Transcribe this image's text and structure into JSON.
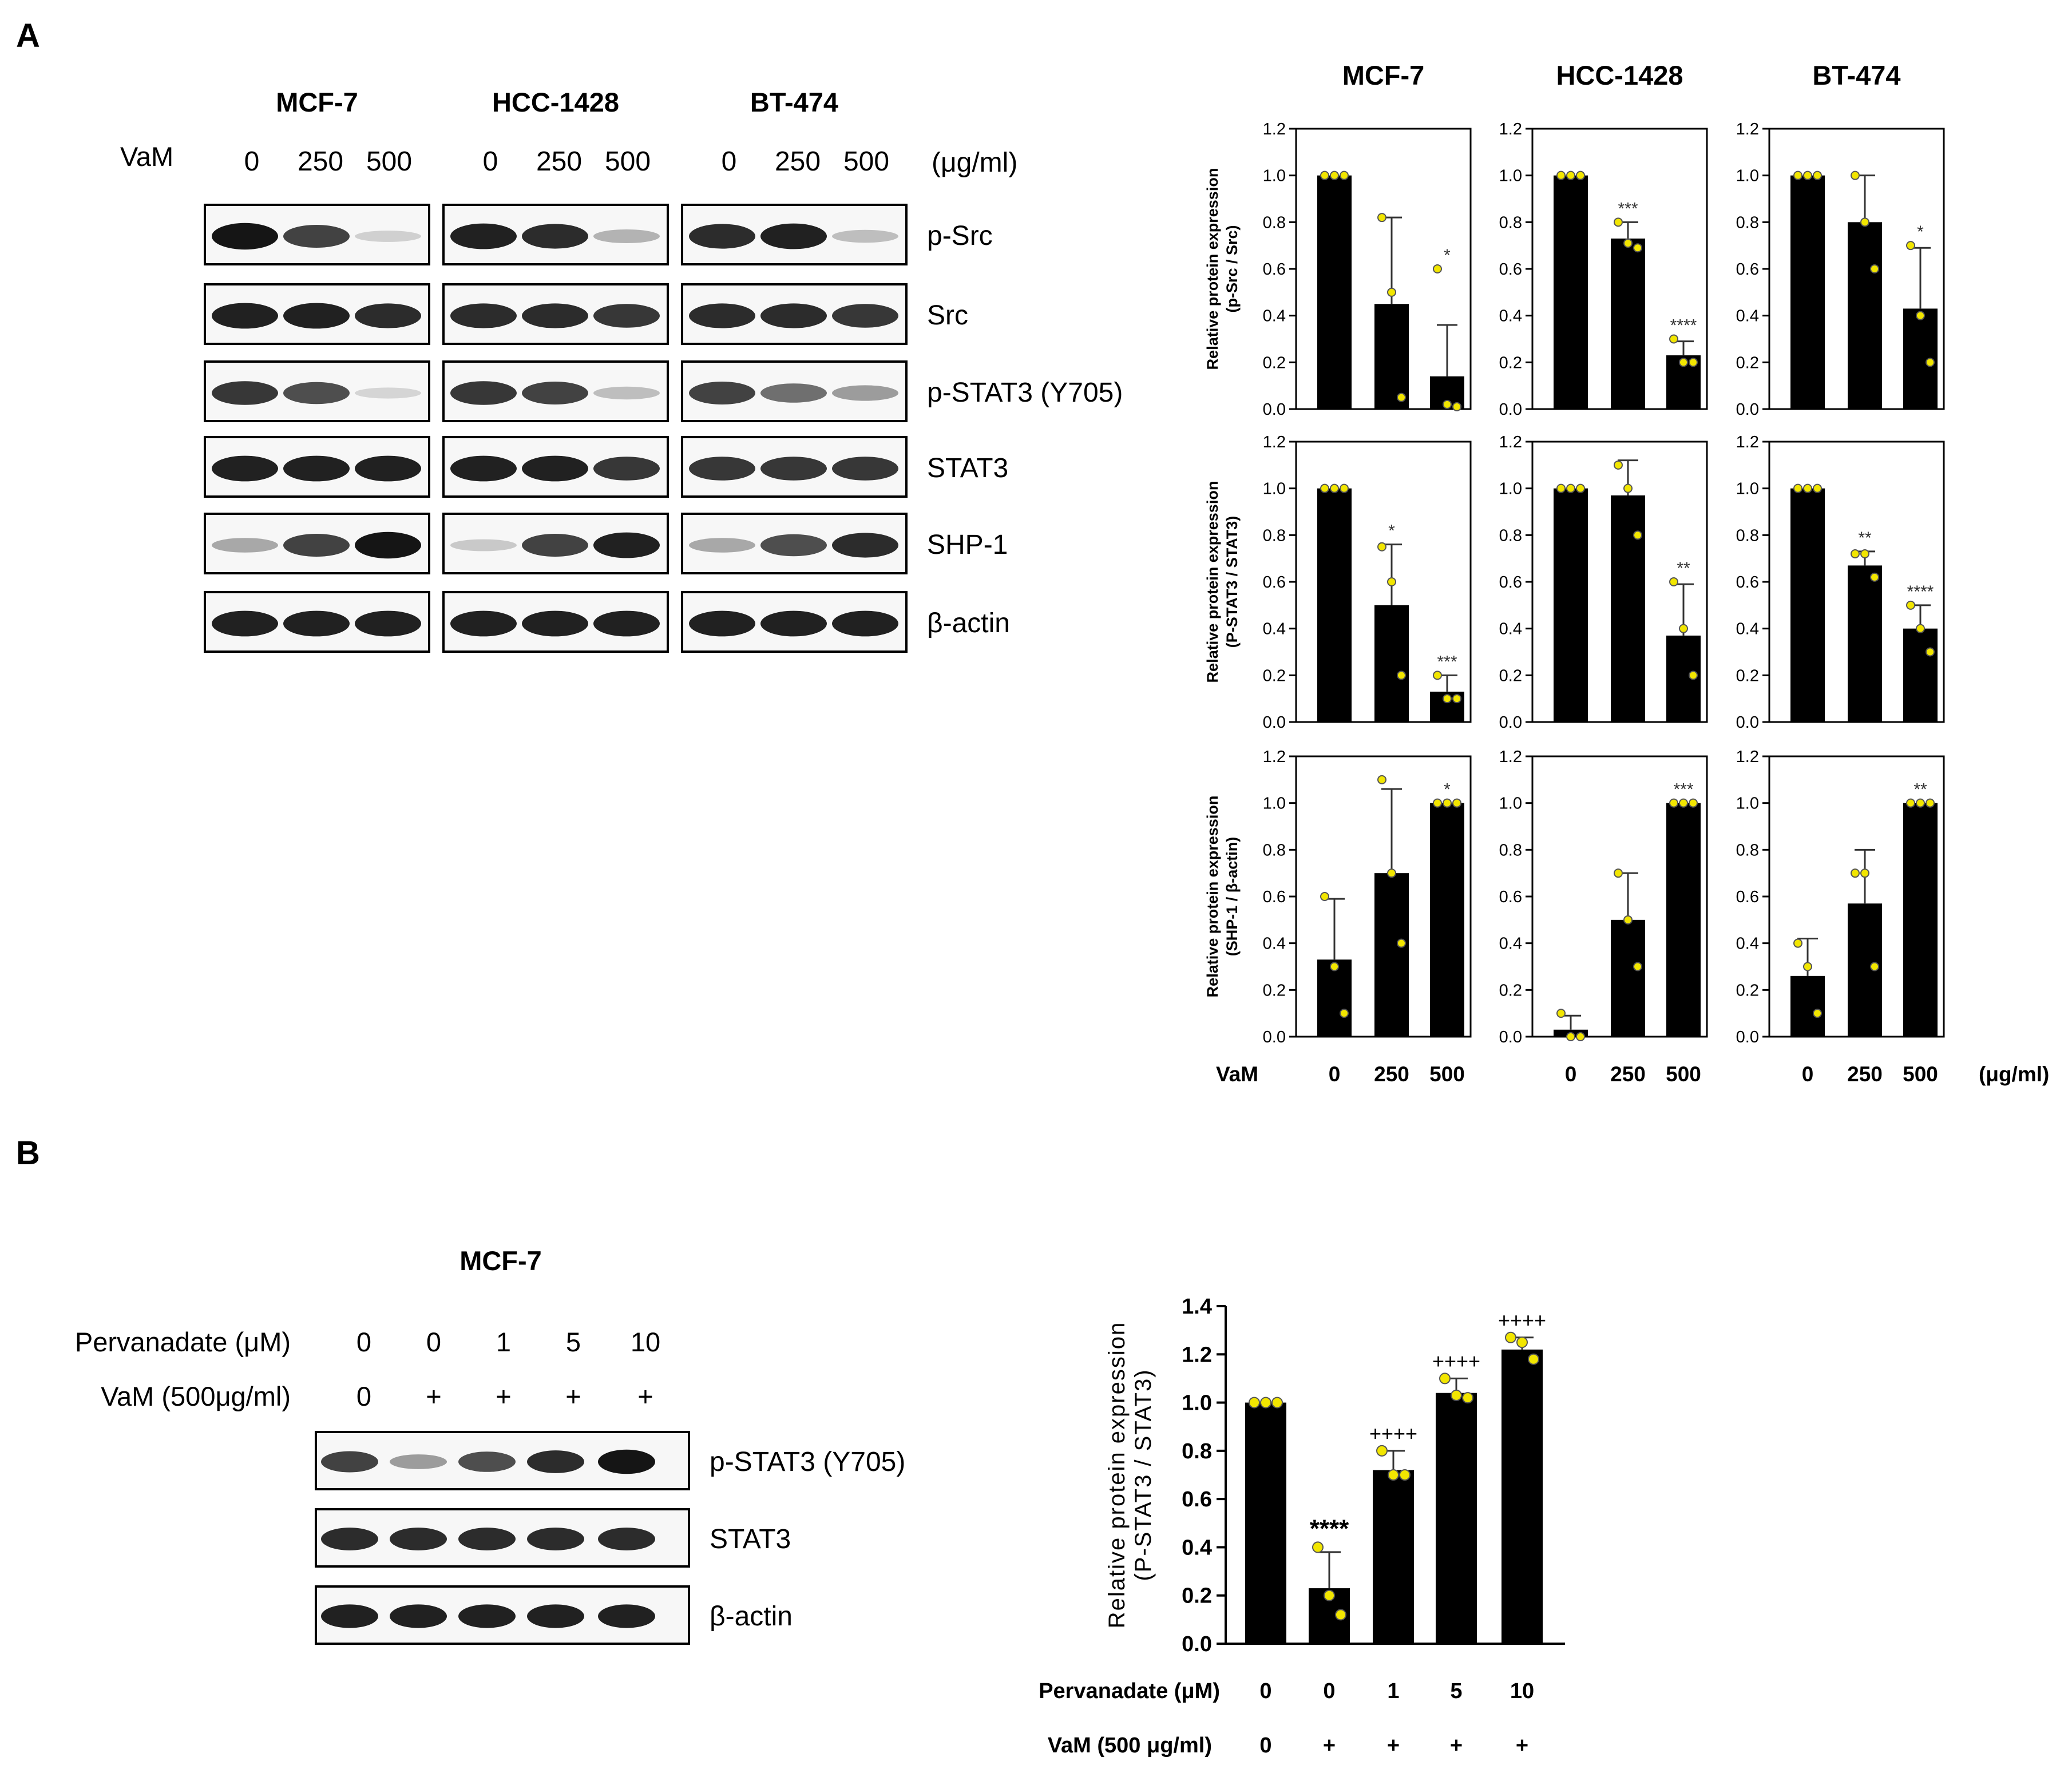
{
  "panels": {
    "a": "A",
    "b": "B"
  },
  "blots_a": {
    "treatment_label": "VaM",
    "unit": "(μg/ml)",
    "doses": [
      "0",
      "250",
      "500"
    ],
    "cell_lines": [
      "MCF-7",
      "HCC-1428",
      "BT-474"
    ],
    "proteins": [
      "p-Src",
      "Src",
      "p-STAT3 (Y705)",
      "STAT3",
      "SHP-1",
      "β-actin"
    ],
    "band_intensity": [
      [
        [
          0.95,
          0.75,
          0.12
        ],
        [
          0.9,
          0.85,
          0.25
        ],
        [
          0.85,
          0.9,
          0.2
        ]
      ],
      [
        [
          0.9,
          0.9,
          0.85
        ],
        [
          0.85,
          0.85,
          0.8
        ],
        [
          0.85,
          0.85,
          0.8
        ]
      ],
      [
        [
          0.8,
          0.7,
          0.1
        ],
        [
          0.8,
          0.75,
          0.2
        ],
        [
          0.75,
          0.55,
          0.35
        ]
      ],
      [
        [
          0.9,
          0.9,
          0.9
        ],
        [
          0.9,
          0.9,
          0.8
        ],
        [
          0.8,
          0.8,
          0.8
        ]
      ],
      [
        [
          0.3,
          0.75,
          0.95
        ],
        [
          0.15,
          0.75,
          0.9
        ],
        [
          0.3,
          0.7,
          0.85
        ]
      ],
      [
        [
          0.9,
          0.9,
          0.9
        ],
        [
          0.9,
          0.9,
          0.9
        ],
        [
          0.9,
          0.9,
          0.9
        ]
      ]
    ]
  },
  "blots_b": {
    "cell_line": "MCF-7",
    "row1_label": "Pervanadate (μM)",
    "row1_values": [
      "0",
      "0",
      "1",
      "5",
      "10"
    ],
    "row2_label": "VaM (500μg/ml)",
    "row2_values": [
      "0",
      "+",
      "+",
      "+",
      "+"
    ],
    "proteins": [
      "p-STAT3 (Y705)",
      "STAT3",
      "β-actin"
    ],
    "band_intensity": [
      [
        0.75,
        0.35,
        0.7,
        0.85,
        0.95
      ],
      [
        0.85,
        0.85,
        0.85,
        0.85,
        0.85
      ],
      [
        0.9,
        0.9,
        0.9,
        0.9,
        0.9
      ]
    ]
  },
  "grid_a": {
    "col_titles": [
      "MCF-7",
      "HCC-1428",
      "BT-474"
    ],
    "ylabel_line1": "Relative protein expression",
    "row_ylabels": [
      "(p-Src / Src)",
      "(P-STAT3 / STAT3)",
      "(SHP-1 / β-actin)"
    ],
    "yticks": [
      "0.0",
      "0.2",
      "0.4",
      "0.6",
      "0.8",
      "1.0",
      "1.2"
    ],
    "x_prefix": "VaM",
    "x_unit": "(μg/ml)"
  },
  "chart_b": {
    "ylabel_line1": "Relative protein expression",
    "ylabel_line2": "(P-STAT3 / STAT3)",
    "yticks": [
      "0.0",
      "0.2",
      "0.4",
      "0.6",
      "0.8",
      "1.0",
      "1.2",
      "1.4"
    ],
    "row1_label": "Pervanadate (μM)",
    "row2_label": "VaM (500 μg/ml)"
  },
  "chart_data": [
    {
      "type": "bar",
      "categories": [
        "0",
        "250",
        "500"
      ],
      "values": [
        1.0,
        0.45,
        0.14
      ],
      "errors": [
        0,
        0.37,
        0.22
      ],
      "points": [
        [
          1,
          1,
          1
        ],
        [
          0.82,
          0.5,
          0.05
        ],
        [
          0.6,
          0.02,
          0.01
        ]
      ],
      "sig": [
        "",
        "",
        "*"
      ],
      "ylim": [
        0,
        1.2
      ],
      "title": "MCF-7",
      "ylabel": "Relative protein expression (p-Src / Src)",
      "xlabel": "VaM",
      "color": "#000000",
      "point_color": "#f2e600"
    },
    {
      "type": "bar",
      "categories": [
        "0",
        "250",
        "500"
      ],
      "values": [
        1.0,
        0.73,
        0.23
      ],
      "errors": [
        0,
        0.07,
        0.06
      ],
      "points": [
        [
          1,
          1,
          1
        ],
        [
          0.8,
          0.71,
          0.69
        ],
        [
          0.3,
          0.2,
          0.2
        ]
      ],
      "sig": [
        "",
        "***",
        "****"
      ],
      "ylim": [
        0,
        1.2
      ],
      "title": "HCC-1428",
      "xlabel": "VaM"
    },
    {
      "type": "bar",
      "categories": [
        "0",
        "250",
        "500"
      ],
      "values": [
        1.0,
        0.8,
        0.43
      ],
      "errors": [
        0,
        0.2,
        0.26
      ],
      "points": [
        [
          1,
          1,
          1
        ],
        [
          1.0,
          0.8,
          0.6
        ],
        [
          0.7,
          0.4,
          0.2
        ]
      ],
      "sig": [
        "",
        "",
        "*"
      ],
      "ylim": [
        0,
        1.2
      ],
      "title": "BT-474",
      "xlabel": "VaM"
    },
    {
      "type": "bar",
      "categories": [
        "0",
        "250",
        "500"
      ],
      "values": [
        1.0,
        0.5,
        0.13
      ],
      "errors": [
        0,
        0.26,
        0.07
      ],
      "points": [
        [
          1,
          1,
          1
        ],
        [
          0.75,
          0.6,
          0.2
        ],
        [
          0.2,
          0.1,
          0.1
        ]
      ],
      "sig": [
        "",
        "*",
        "***"
      ],
      "ylim": [
        0,
        1.2
      ],
      "title": "MCF-7",
      "ylabel": "Relative protein expression (P-STAT3 / STAT3)",
      "xlabel": "VaM"
    },
    {
      "type": "bar",
      "categories": [
        "0",
        "250",
        "500"
      ],
      "values": [
        1.0,
        0.97,
        0.37
      ],
      "errors": [
        0,
        0.15,
        0.22
      ],
      "points": [
        [
          1,
          1,
          1
        ],
        [
          1.1,
          1.0,
          0.8
        ],
        [
          0.6,
          0.4,
          0.2
        ]
      ],
      "sig": [
        "",
        "",
        "**"
      ],
      "ylim": [
        0,
        1.2
      ],
      "title": "HCC-1428",
      "xlabel": "VaM"
    },
    {
      "type": "bar",
      "categories": [
        "0",
        "250",
        "500"
      ],
      "values": [
        1.0,
        0.67,
        0.4
      ],
      "errors": [
        0,
        0.06,
        0.1
      ],
      "points": [
        [
          1,
          1,
          1
        ],
        [
          0.72,
          0.72,
          0.62
        ],
        [
          0.5,
          0.4,
          0.3
        ]
      ],
      "sig": [
        "",
        "**",
        "****"
      ],
      "ylim": [
        0,
        1.2
      ],
      "title": "BT-474",
      "xlabel": "VaM"
    },
    {
      "type": "bar",
      "categories": [
        "0",
        "250",
        "500"
      ],
      "values": [
        0.33,
        0.7,
        1.0
      ],
      "errors": [
        0.26,
        0.36,
        0
      ],
      "points": [
        [
          0.6,
          0.3,
          0.1
        ],
        [
          1.1,
          0.7,
          0.4
        ],
        [
          1,
          1,
          1
        ]
      ],
      "sig": [
        "",
        "",
        "*"
      ],
      "ylim": [
        0,
        1.2
      ],
      "title": "MCF-7",
      "ylabel": "Relative protein expression (SHP-1 / β-actin)",
      "xlabel": "VaM"
    },
    {
      "type": "bar",
      "categories": [
        "0",
        "250",
        "500"
      ],
      "values": [
        0.03,
        0.5,
        1.0
      ],
      "errors": [
        0.06,
        0.2,
        0
      ],
      "points": [
        [
          0.1,
          0.0,
          0.0
        ],
        [
          0.7,
          0.5,
          0.3
        ],
        [
          1,
          1,
          1
        ]
      ],
      "sig": [
        "",
        "",
        "***"
      ],
      "ylim": [
        0,
        1.2
      ],
      "title": "HCC-1428",
      "xlabel": "VaM"
    },
    {
      "type": "bar",
      "categories": [
        "0",
        "250",
        "500"
      ],
      "values": [
        0.26,
        0.57,
        1.0
      ],
      "errors": [
        0.16,
        0.23,
        0
      ],
      "points": [
        [
          0.4,
          0.3,
          0.1
        ],
        [
          0.7,
          0.7,
          0.3
        ],
        [
          1,
          1,
          1
        ]
      ],
      "sig": [
        "",
        "",
        "**"
      ],
      "ylim": [
        0,
        1.2
      ],
      "title": "BT-474",
      "xlabel": "VaM"
    },
    {
      "type": "bar",
      "categories": [
        "0",
        "0",
        "1",
        "5",
        "10"
      ],
      "categories_row2": [
        "0",
        "+",
        "+",
        "+",
        "+"
      ],
      "values": [
        1.0,
        0.23,
        0.72,
        1.04,
        1.22
      ],
      "errors": [
        0,
        0.15,
        0.08,
        0.06,
        0.05
      ],
      "points": [
        [
          1,
          1,
          1
        ],
        [
          0.4,
          0.2,
          0.12
        ],
        [
          0.8,
          0.7,
          0.7
        ],
        [
          1.1,
          1.03,
          1.02
        ],
        [
          1.27,
          1.25,
          1.18
        ]
      ],
      "sig": [
        "",
        "****",
        "++++",
        "++++",
        "++++"
      ],
      "ylim": [
        0,
        1.4
      ],
      "ylabel": "Relative protein expression (P-STAT3 / STAT3)",
      "xlabel": "Pervanadate (μM) / VaM (500 μg/ml)"
    }
  ]
}
